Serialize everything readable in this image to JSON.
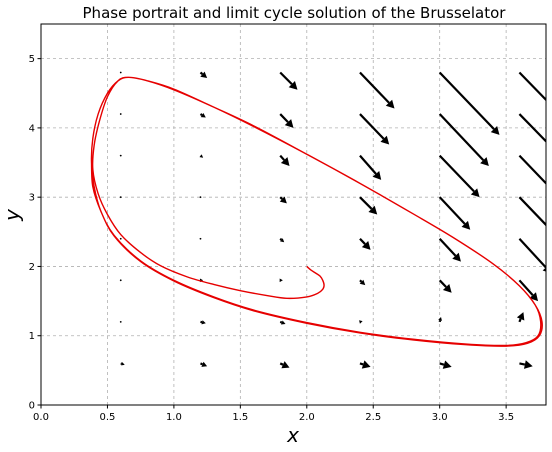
{
  "chart_data": {
    "type": "line",
    "title": "Phase portrait and limit cycle solution of the Brusselator",
    "xlabel": "x",
    "ylabel": "y",
    "xlim": [
      0.0,
      3.8
    ],
    "ylim": [
      0.0,
      5.5
    ],
    "x_ticks": [
      "0.0",
      "0.5",
      "1.0",
      "1.5",
      "2.0",
      "2.5",
      "3.0",
      "3.5"
    ],
    "y_ticks": [
      "0",
      "1",
      "2",
      "3",
      "4",
      "5"
    ],
    "grid": true,
    "grid_style": "dashed",
    "series": [
      {
        "color": "#e60000",
        "points": [
          [
            2.0,
            2.0
          ],
          [
            2.03,
            1.95
          ],
          [
            2.07,
            1.9
          ],
          [
            2.1,
            1.86
          ],
          [
            2.12,
            1.8
          ],
          [
            2.13,
            1.73
          ],
          [
            2.12,
            1.67
          ],
          [
            2.08,
            1.61
          ],
          [
            2.0,
            1.56
          ],
          [
            1.85,
            1.54
          ],
          [
            1.7,
            1.58
          ],
          [
            1.5,
            1.65
          ],
          [
            1.3,
            1.74
          ],
          [
            1.1,
            1.85
          ],
          [
            0.9,
            2.01
          ],
          [
            0.75,
            2.2
          ],
          [
            0.6,
            2.46
          ],
          [
            0.5,
            2.75
          ],
          [
            0.43,
            3.05
          ],
          [
            0.39,
            3.4
          ],
          [
            0.4,
            3.75
          ],
          [
            0.44,
            4.1
          ],
          [
            0.5,
            4.45
          ],
          [
            0.58,
            4.68
          ],
          [
            0.66,
            4.73
          ],
          [
            0.8,
            4.68
          ],
          [
            1.0,
            4.55
          ],
          [
            1.3,
            4.3
          ],
          [
            1.6,
            4.02
          ],
          [
            2.0,
            3.62
          ],
          [
            2.4,
            3.2
          ],
          [
            2.8,
            2.76
          ],
          [
            3.1,
            2.42
          ],
          [
            3.4,
            2.04
          ],
          [
            3.6,
            1.72
          ],
          [
            3.72,
            1.44
          ],
          [
            3.76,
            1.2
          ],
          [
            3.74,
            1.0
          ],
          [
            3.65,
            0.9
          ],
          [
            3.5,
            0.86
          ],
          [
            3.2,
            0.88
          ],
          [
            2.8,
            0.95
          ],
          [
            2.4,
            1.05
          ],
          [
            2.0,
            1.19
          ],
          [
            1.6,
            1.37
          ],
          [
            1.3,
            1.56
          ],
          [
            1.0,
            1.8
          ],
          [
            0.75,
            2.08
          ],
          [
            0.55,
            2.45
          ],
          [
            0.45,
            2.8
          ],
          [
            0.4,
            3.15
          ],
          [
            0.38,
            3.5
          ],
          [
            0.39,
            3.85
          ],
          [
            0.43,
            4.2
          ],
          [
            0.5,
            4.5
          ],
          [
            0.58,
            4.68
          ],
          [
            0.66,
            4.73
          ],
          [
            0.8,
            4.68
          ],
          [
            1.0,
            4.56
          ],
          [
            1.3,
            4.3
          ],
          [
            1.6,
            4.03
          ],
          [
            2.0,
            3.62
          ],
          [
            2.4,
            3.2
          ],
          [
            2.8,
            2.76
          ],
          [
            3.1,
            2.42
          ],
          [
            3.4,
            2.04
          ],
          [
            3.6,
            1.72
          ],
          [
            3.72,
            1.44
          ],
          [
            3.77,
            1.2
          ],
          [
            3.75,
            1.0
          ],
          [
            3.66,
            0.89
          ],
          [
            3.5,
            0.85
          ],
          [
            3.2,
            0.87
          ],
          [
            2.8,
            0.94
          ],
          [
            2.4,
            1.04
          ],
          [
            2.0,
            1.18
          ],
          [
            1.6,
            1.36
          ],
          [
            1.3,
            1.55
          ],
          [
            1.0,
            1.79
          ],
          [
            0.75,
            2.07
          ],
          [
            0.55,
            2.44
          ],
          [
            0.45,
            2.8
          ],
          [
            0.39,
            3.15
          ],
          [
            0.38,
            3.5
          ]
        ]
      }
    ],
    "quiver": {
      "color": "#000000",
      "xs": [
        0.6,
        1.2,
        1.8,
        2.4,
        3.0,
        3.6
      ],
      "ys": [
        0.6,
        1.2,
        1.8,
        2.4,
        3.0,
        3.6,
        4.2,
        4.8
      ],
      "arrows": [
        {
          "x": 0.6,
          "y": 0.6,
          "dx": 0.03,
          "dy": -0.02
        },
        {
          "x": 1.2,
          "y": 0.6,
          "dx": 0.05,
          "dy": -0.04
        },
        {
          "x": 1.8,
          "y": 0.6,
          "dx": 0.07,
          "dy": -0.06
        },
        {
          "x": 2.4,
          "y": 0.6,
          "dx": 0.08,
          "dy": -0.05
        },
        {
          "x": 3.0,
          "y": 0.6,
          "dx": 0.09,
          "dy": -0.05
        },
        {
          "x": 3.6,
          "y": 0.6,
          "dx": 0.1,
          "dy": -0.04
        },
        {
          "x": 0.6,
          "y": 1.2,
          "dx": 0.01,
          "dy": 0.0
        },
        {
          "x": 1.2,
          "y": 1.2,
          "dx": 0.04,
          "dy": -0.02
        },
        {
          "x": 1.8,
          "y": 1.2,
          "dx": 0.04,
          "dy": -0.03
        },
        {
          "x": 2.4,
          "y": 1.2,
          "dx": 0.02,
          "dy": 0.01
        },
        {
          "x": 3.0,
          "y": 1.2,
          "dx": 0.01,
          "dy": 0.07
        },
        {
          "x": 3.6,
          "y": 1.2,
          "dx": 0.03,
          "dy": 0.14
        },
        {
          "x": 0.6,
          "y": 1.8,
          "dx": 0.0,
          "dy": 0.0
        },
        {
          "x": 1.2,
          "y": 1.8,
          "dx": 0.02,
          "dy": 0.0
        },
        {
          "x": 1.8,
          "y": 1.8,
          "dx": 0.02,
          "dy": 0.0
        },
        {
          "x": 2.4,
          "y": 1.8,
          "dx": 0.04,
          "dy": -0.07
        },
        {
          "x": 3.0,
          "y": 1.8,
          "dx": 0.09,
          "dy": -0.18
        },
        {
          "x": 3.6,
          "y": 1.8,
          "dx": 0.14,
          "dy": -0.3
        },
        {
          "x": 0.6,
          "y": 2.4,
          "dx": 0.0,
          "dy": 0.0
        },
        {
          "x": 1.2,
          "y": 2.4,
          "dx": 0.01,
          "dy": 0.0
        },
        {
          "x": 1.8,
          "y": 2.4,
          "dx": 0.03,
          "dy": -0.05
        },
        {
          "x": 2.4,
          "y": 2.4,
          "dx": 0.08,
          "dy": -0.16
        },
        {
          "x": 3.0,
          "y": 2.4,
          "dx": 0.16,
          "dy": -0.33
        },
        {
          "x": 3.6,
          "y": 2.4,
          "dx": 0.24,
          "dy": -0.5
        },
        {
          "x": 0.6,
          "y": 3.0,
          "dx": 0.0,
          "dy": 0.0
        },
        {
          "x": 1.2,
          "y": 3.0,
          "dx": 0.01,
          "dy": 0.0
        },
        {
          "x": 1.8,
          "y": 3.0,
          "dx": 0.05,
          "dy": -0.09
        },
        {
          "x": 2.4,
          "y": 3.0,
          "dx": 0.13,
          "dy": -0.25
        },
        {
          "x": 3.0,
          "y": 3.0,
          "dx": 0.23,
          "dy": -0.47
        },
        {
          "x": 3.6,
          "y": 3.0,
          "dx": 0.35,
          "dy": -0.7
        },
        {
          "x": 0.6,
          "y": 3.6,
          "dx": 0.0,
          "dy": 0.0
        },
        {
          "x": 1.2,
          "y": 3.6,
          "dx": 0.02,
          "dy": -0.03
        },
        {
          "x": 1.8,
          "y": 3.6,
          "dx": 0.07,
          "dy": -0.15
        },
        {
          "x": 2.4,
          "y": 3.6,
          "dx": 0.16,
          "dy": -0.35
        },
        {
          "x": 3.0,
          "y": 3.6,
          "dx": 0.3,
          "dy": -0.6
        },
        {
          "x": 3.6,
          "y": 3.6,
          "dx": 0.45,
          "dy": -0.9
        },
        {
          "x": 0.6,
          "y": 4.2,
          "dx": 0.0,
          "dy": 0.0
        },
        {
          "x": 1.2,
          "y": 4.2,
          "dx": 0.04,
          "dy": -0.05
        },
        {
          "x": 1.8,
          "y": 4.2,
          "dx": 0.1,
          "dy": -0.2
        },
        {
          "x": 2.4,
          "y": 4.2,
          "dx": 0.22,
          "dy": -0.44
        },
        {
          "x": 3.0,
          "y": 4.2,
          "dx": 0.37,
          "dy": -0.75
        },
        {
          "x": 3.6,
          "y": 4.2,
          "dx": 0.56,
          "dy": -1.1
        },
        {
          "x": 0.6,
          "y": 4.8,
          "dx": 0.0,
          "dy": 0.0
        },
        {
          "x": 1.2,
          "y": 4.8,
          "dx": 0.05,
          "dy": -0.08
        },
        {
          "x": 1.8,
          "y": 4.8,
          "dx": 0.13,
          "dy": -0.25
        },
        {
          "x": 2.4,
          "y": 4.8,
          "dx": 0.26,
          "dy": -0.52
        },
        {
          "x": 3.0,
          "y": 4.8,
          "dx": 0.45,
          "dy": -0.9
        },
        {
          "x": 3.6,
          "y": 4.8,
          "dx": 0.66,
          "dy": -1.3
        }
      ]
    }
  }
}
